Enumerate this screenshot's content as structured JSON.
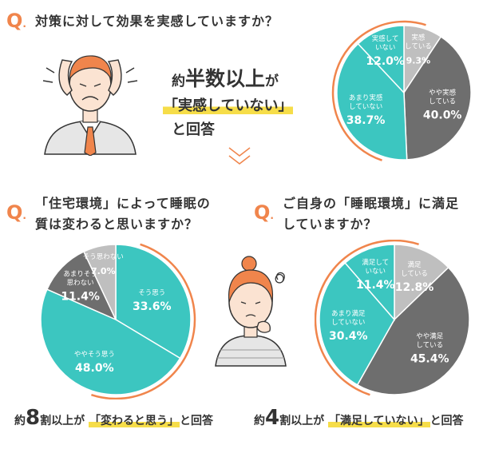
{
  "colors": {
    "accent": "#f0854c",
    "highlight": "#f6dd49",
    "teal": "#3cc6c0",
    "dark_gray": "#6e6e6e",
    "light_gray": "#bfbfbf",
    "text": "#333333"
  },
  "q1": {
    "mark": "Q",
    "dot": ".",
    "question": "対策に対して効果を実感していますか？",
    "result_line1_prefix": "約",
    "result_line1_emph": "半数以上",
    "result_line1_suffix": "が",
    "result_line2": "「実感していない」",
    "result_line3": "と回答"
  },
  "q2": {
    "mark": "Q",
    "dot": ".",
    "question_line1": "「住宅環境」によって睡眠の",
    "question_line2": "質は変わると思いますか？",
    "result_prefix": "約",
    "result_num": "8",
    "result_mid": "割以上が",
    "result_hl": "「変わると思う」",
    "result_suffix": "と回答"
  },
  "q3": {
    "mark": "Q",
    "dot": ".",
    "question_line1": "ご自身の「睡眠環境」に満足",
    "question_line2": "していますか？",
    "result_prefix": "約",
    "result_num": "4",
    "result_mid": "割以上が",
    "result_hl": "「満足していない」",
    "result_suffix": "と回答"
  },
  "chart_data": [
    {
      "type": "pie",
      "title": "",
      "slices": [
        {
          "label": [
            "実感",
            "している"
          ],
          "value": 9.3,
          "display": "9.3%",
          "color": "#bfbfbf"
        },
        {
          "label": [
            "やや実感",
            "している"
          ],
          "value": 40.0,
          "display": "40.0%",
          "color": "#6e6e6e"
        },
        {
          "label": [
            "あまり実感",
            "していない"
          ],
          "value": 38.7,
          "display": "38.7%",
          "color": "#3cc6c0"
        },
        {
          "label": [
            "実感して",
            "いない"
          ],
          "value": 12.0,
          "display": "12.0%",
          "color": "#3cc6c0"
        }
      ]
    },
    {
      "type": "pie",
      "title": "",
      "slices": [
        {
          "label": [
            "そう思う"
          ],
          "value": 33.6,
          "display": "33.6%",
          "color": "#3cc6c0"
        },
        {
          "label": [
            "ややそう思う"
          ],
          "value": 48.0,
          "display": "48.0%",
          "color": "#3cc6c0"
        },
        {
          "label": [
            "あまりそう",
            "思わない"
          ],
          "value": 11.4,
          "display": "11.4%",
          "color": "#6e6e6e"
        },
        {
          "label": [
            "そう思わない"
          ],
          "value": 7.0,
          "display": "7.0%",
          "color": "#bfbfbf"
        }
      ]
    },
    {
      "type": "pie",
      "title": "",
      "slices": [
        {
          "label": [
            "満足",
            "している"
          ],
          "value": 12.8,
          "display": "12.8%",
          "color": "#bfbfbf"
        },
        {
          "label": [
            "やや満足",
            "している"
          ],
          "value": 45.4,
          "display": "45.4%",
          "color": "#6e6e6e"
        },
        {
          "label": [
            "あまり満足",
            "していない"
          ],
          "value": 30.4,
          "display": "30.4%",
          "color": "#3cc6c0"
        },
        {
          "label": [
            "満足して",
            "いない"
          ],
          "value": 11.4,
          "display": "11.4%",
          "color": "#3cc6c0"
        }
      ]
    }
  ]
}
